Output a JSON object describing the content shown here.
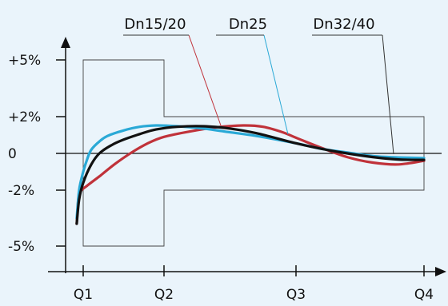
{
  "chart_data": {
    "type": "line",
    "y_ticks": [
      {
        "label": "+5%",
        "value": 5
      },
      {
        "label": "+2%",
        "value": 2
      },
      {
        "label": "0",
        "value": 0
      },
      {
        "label": "-2%",
        "value": -2
      },
      {
        "label": "-5%",
        "value": -5
      }
    ],
    "x_ticks": [
      {
        "label": "Q1",
        "value": 1
      },
      {
        "label": "Q2",
        "value": 2
      },
      {
        "label": "Q3",
        "value": 3
      },
      {
        "label": "Q4",
        "value": 4
      }
    ],
    "ylim": [
      -6.2,
      7
    ],
    "tolerance_band": {
      "wide_x": [
        1,
        2
      ],
      "wide_y": [
        -5,
        5
      ],
      "narrow_x": [
        2,
        4
      ],
      "narrow_y": [
        -2,
        2
      ]
    },
    "series": [
      {
        "name": "Dn15/20",
        "color": "#c0323a",
        "points": [
          [
            0.92,
            -3.8
          ],
          [
            0.94,
            -2.5
          ],
          [
            0.97,
            -2.05
          ],
          [
            1.05,
            -1.75
          ],
          [
            1.2,
            -1.25
          ],
          [
            1.4,
            -0.55
          ],
          [
            1.6,
            0.05
          ],
          [
            1.8,
            0.55
          ],
          [
            2.0,
            0.9
          ],
          [
            2.2,
            1.2
          ],
          [
            2.4,
            1.42
          ],
          [
            2.6,
            1.52
          ],
          [
            2.75,
            1.45
          ],
          [
            2.9,
            1.15
          ],
          [
            3.0,
            0.85
          ],
          [
            3.2,
            0.3
          ],
          [
            3.4,
            -0.2
          ],
          [
            3.6,
            -0.5
          ],
          [
            3.8,
            -0.6
          ],
          [
            4.0,
            -0.4
          ]
        ]
      },
      {
        "name": "Dn25",
        "color": "#2aa9d6",
        "points": [
          [
            0.92,
            -3.5
          ],
          [
            0.95,
            -2.0
          ],
          [
            1.0,
            -1.0
          ],
          [
            1.05,
            -0.3
          ],
          [
            1.1,
            0.2
          ],
          [
            1.2,
            0.65
          ],
          [
            1.3,
            0.95
          ],
          [
            1.5,
            1.25
          ],
          [
            1.7,
            1.45
          ],
          [
            1.9,
            1.52
          ],
          [
            2.1,
            1.48
          ],
          [
            2.3,
            1.35
          ],
          [
            2.5,
            1.15
          ],
          [
            2.7,
            0.95
          ],
          [
            3.0,
            0.55
          ],
          [
            3.2,
            0.25
          ],
          [
            3.4,
            0.05
          ],
          [
            3.6,
            -0.15
          ],
          [
            3.8,
            -0.22
          ],
          [
            4.0,
            -0.25
          ]
        ]
      },
      {
        "name": "Dn32/40",
        "color": "#111111",
        "points": [
          [
            0.92,
            -3.8
          ],
          [
            0.95,
            -2.5
          ],
          [
            1.0,
            -1.6
          ],
          [
            1.1,
            -0.6
          ],
          [
            1.2,
            0.0
          ],
          [
            1.35,
            0.45
          ],
          [
            1.5,
            0.75
          ],
          [
            1.7,
            1.05
          ],
          [
            1.9,
            1.3
          ],
          [
            2.1,
            1.45
          ],
          [
            2.3,
            1.48
          ],
          [
            2.5,
            1.35
          ],
          [
            2.7,
            1.1
          ],
          [
            3.0,
            0.55
          ],
          [
            3.2,
            0.25
          ],
          [
            3.4,
            0.0
          ],
          [
            3.6,
            -0.2
          ],
          [
            3.8,
            -0.33
          ],
          [
            4.0,
            -0.35
          ]
        ]
      }
    ]
  }
}
